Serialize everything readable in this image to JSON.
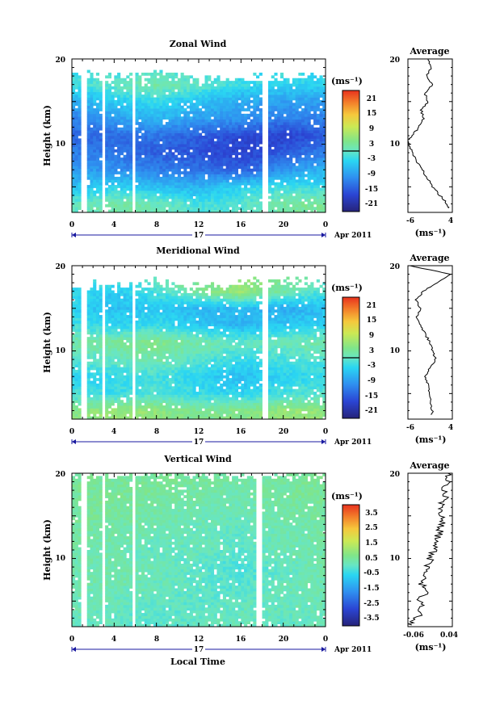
{
  "figure": {
    "date_label": "Apr 2011",
    "day_label": "17",
    "xlabel": "Local Time",
    "average_title": "Average",
    "unit_label": "(ms⁻¹)"
  },
  "chart_data": [
    {
      "type": "heatmap",
      "title": "Zonal Wind",
      "ylabel": "Height (km)",
      "xlabel": "",
      "x_ticks": [
        "0",
        "4",
        "8",
        "12",
        "16",
        "20",
        "0"
      ],
      "xlim_hours": [
        0,
        24
      ],
      "ylim_km": [
        2,
        20
      ],
      "y_ticks": [
        "10",
        "20"
      ],
      "colorbar": {
        "unit": "(ms⁻¹)",
        "ticks": [
          "21",
          "15",
          "9",
          "3",
          "-3",
          "-9",
          "-15",
          "-21"
        ],
        "range": [
          -24,
          24
        ],
        "zero_contour": true
      },
      "gap_hours": [
        [
          1.0,
          1.3
        ],
        [
          2.9,
          3.2
        ],
        [
          5.7,
          6.0
        ],
        [
          18.0,
          18.6
        ]
      ],
      "field": {
        "heights_km": [
          3,
          5,
          7,
          9,
          11,
          13,
          15,
          17,
          19
        ],
        "times_h": [
          0,
          4,
          8,
          12,
          16,
          20,
          24
        ],
        "values": [
          [
            0,
            2,
            1,
            -2,
            -1,
            2,
            3
          ],
          [
            -6,
            -4,
            -6,
            -7,
            -4,
            -2,
            -3
          ],
          [
            -9,
            -10,
            -12,
            -13,
            -15,
            -10,
            -7
          ],
          [
            -12,
            -13,
            -15,
            -16,
            -18,
            -15,
            -12
          ],
          [
            -14,
            -14,
            -13,
            -15,
            -17,
            -18,
            -15
          ],
          [
            -12,
            -9,
            -7,
            -9,
            -10,
            -12,
            -12
          ],
          [
            -8,
            -5,
            -3,
            -6,
            -8,
            -9,
            -9
          ],
          [
            -2,
            0,
            2,
            0,
            -3,
            -4,
            -4
          ],
          [
            -4,
            -3,
            -2,
            -2,
            -3,
            -2,
            -3
          ]
        ],
        "data_top_km": [
          18.2,
          17.8,
          18.5,
          17.5,
          17.8,
          18.0,
          17.6
        ]
      },
      "average_profile": {
        "xlim": [
          -6,
          4
        ],
        "x_ticks": [
          "-6",
          "4"
        ],
        "ylim_km": [
          2,
          20
        ],
        "y_ticks": [
          "10",
          "20"
        ],
        "height_km": [
          2.5,
          3,
          4,
          5,
          6,
          7,
          8,
          9,
          10,
          10.5,
          11,
          12,
          13,
          14,
          15,
          16,
          17,
          18,
          19,
          20
        ],
        "value": [
          3.2,
          2.8,
          1.2,
          -0.4,
          -1.6,
          -2.8,
          -4.0,
          -5.0,
          -5.8,
          -6.0,
          -5.0,
          -3.5,
          -2.5,
          -3.0,
          -1.5,
          -2.2,
          -0.5,
          -1.8,
          -0.8,
          -1.5
        ]
      }
    },
    {
      "type": "heatmap",
      "title": "Meridional Wind",
      "ylabel": "Height (km)",
      "xlabel": "",
      "x_ticks": [
        "0",
        "4",
        "8",
        "12",
        "16",
        "20",
        "0"
      ],
      "xlim_hours": [
        0,
        24
      ],
      "ylim_km": [
        2,
        20
      ],
      "y_ticks": [
        "10",
        "20"
      ],
      "colorbar": {
        "unit": "(ms⁻¹)",
        "ticks": [
          "21",
          "15",
          "9",
          "3",
          "-3",
          "-9",
          "-15",
          "-21"
        ],
        "range": [
          -24,
          24
        ],
        "zero_contour": true
      },
      "gap_hours": [
        [
          1.0,
          1.3
        ],
        [
          2.9,
          3.2
        ],
        [
          5.7,
          6.0
        ],
        [
          18.0,
          18.6
        ]
      ],
      "field": {
        "heights_km": [
          3,
          5,
          7,
          9,
          11,
          13,
          15,
          17,
          19
        ],
        "times_h": [
          0,
          4,
          8,
          12,
          16,
          20,
          24
        ],
        "values": [
          [
            4,
            6,
            5,
            3,
            4,
            6,
            5
          ],
          [
            -2,
            -3,
            -1,
            -3,
            -4,
            -2,
            -1
          ],
          [
            -4,
            -3,
            -2,
            -4,
            -6,
            -4,
            -3
          ],
          [
            -1,
            0,
            2,
            -1,
            -3,
            -2,
            -1
          ],
          [
            2,
            3,
            4,
            2,
            0,
            1,
            2
          ],
          [
            -2,
            -4,
            -3,
            -5,
            -7,
            -5,
            -4
          ],
          [
            -4,
            -6,
            -5,
            -7,
            -6,
            -8,
            -6
          ],
          [
            -3,
            -5,
            -2,
            3,
            6,
            2,
            -2
          ],
          [
            -1,
            0,
            2,
            4,
            5,
            3,
            1
          ]
        ],
        "data_top_km": [
          17.6,
          17.5,
          18.0,
          17.2,
          17.8,
          18.3,
          17.5
        ]
      },
      "average_profile": {
        "xlim": [
          -6,
          4
        ],
        "x_ticks": [
          "-6",
          "4"
        ],
        "ylim_km": [
          2,
          20
        ],
        "y_ticks": [
          "10",
          "20"
        ],
        "height_km": [
          2.5,
          3,
          4,
          5,
          6,
          7,
          8,
          9,
          10,
          11,
          12,
          13,
          14,
          15,
          16,
          17,
          18,
          19,
          20
        ],
        "value": [
          -0.6,
          -0.5,
          -1.0,
          -1.2,
          -1.5,
          -2.0,
          -1.0,
          0.2,
          -0.4,
          -1.0,
          -2.2,
          -3.0,
          -4.0,
          -3.2,
          -4.2,
          -2.5,
          0.5,
          3.5,
          -5.5
        ]
      }
    },
    {
      "type": "heatmap",
      "title": "Vertical Wind",
      "ylabel": "Height (km)",
      "xlabel": "Local Time",
      "x_ticks": [
        "0",
        "4",
        "8",
        "12",
        "16",
        "20",
        "0"
      ],
      "xlim_hours": [
        0,
        24
      ],
      "ylim_km": [
        2,
        20
      ],
      "y_ticks": [
        "10",
        "20"
      ],
      "colorbar": {
        "unit": "(ms⁻¹)",
        "ticks": [
          "3.5",
          "2.5",
          "1.5",
          "0.5",
          "-0.5",
          "-1.5",
          "-2.5",
          "-3.5"
        ],
        "range": [
          -4,
          4
        ],
        "zero_contour": false
      },
      "gap_hours": [
        [
          1.0,
          1.3
        ],
        [
          2.9,
          3.2
        ],
        [
          5.7,
          6.0
        ],
        [
          17.4,
          18.0
        ]
      ],
      "field": {
        "heights_km": [
          3,
          5,
          7,
          9,
          11,
          13,
          15,
          17,
          19
        ],
        "times_h": [
          0,
          4,
          8,
          12,
          16,
          20,
          24
        ],
        "values": [
          [
            0.1,
            0.0,
            -0.1,
            0.0,
            0.1,
            0.0,
            0.1
          ],
          [
            0.2,
            0.1,
            0.0,
            -0.1,
            0.0,
            0.1,
            0.2
          ],
          [
            0.3,
            0.2,
            0.1,
            0.0,
            -0.2,
            0.1,
            0.2
          ],
          [
            0.2,
            0.3,
            0.2,
            -0.1,
            -0.3,
            0.0,
            0.3
          ],
          [
            0.3,
            0.2,
            0.0,
            0.1,
            -0.1,
            0.2,
            0.3
          ],
          [
            0.4,
            0.3,
            0.2,
            0.1,
            0.0,
            0.2,
            0.3
          ],
          [
            0.5,
            0.4,
            0.3,
            0.2,
            0.1,
            0.3,
            0.4
          ],
          [
            0.4,
            0.5,
            0.4,
            0.3,
            0.2,
            0.4,
            0.5
          ],
          [
            0.5,
            0.4,
            0.5,
            0.4,
            0.3,
            0.4,
            0.5
          ]
        ],
        "data_top_km": [
          19.9,
          19.9,
          19.9,
          19.9,
          19.9,
          19.9,
          19.6
        ]
      },
      "average_profile": {
        "xlim": [
          -0.06,
          0.04
        ],
        "x_ticks": [
          "-0.06",
          "0.04"
        ],
        "ylim_km": [
          2,
          20
        ],
        "y_ticks": [
          "10",
          "20"
        ],
        "height_km": [
          2.2,
          3,
          4,
          5,
          6,
          7,
          8,
          9,
          10,
          11,
          12,
          13,
          14,
          15,
          16,
          17,
          18,
          19,
          20
        ],
        "value": [
          -0.06,
          -0.04,
          -0.03,
          -0.035,
          -0.02,
          -0.03,
          -0.02,
          -0.015,
          -0.01,
          0.0,
          0.005,
          0.01,
          0.015,
          0.02,
          0.01,
          0.025,
          0.02,
          0.03,
          0.03
        ]
      }
    }
  ]
}
